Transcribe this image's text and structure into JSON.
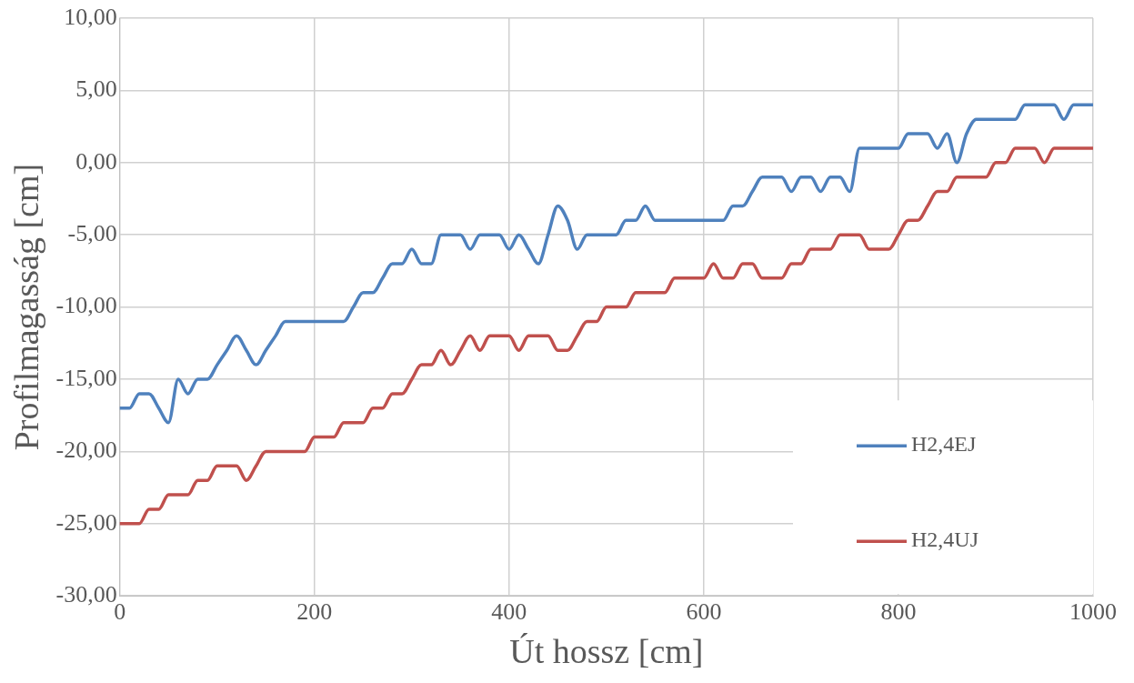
{
  "chart_data": {
    "type": "line",
    "xlabel": "Út hossz [cm]",
    "ylabel": "Profilmagasság [cm]",
    "x": [
      0,
      10,
      20,
      30,
      40,
      50,
      60,
      70,
      80,
      90,
      100,
      110,
      120,
      130,
      140,
      150,
      160,
      170,
      180,
      190,
      200,
      210,
      220,
      230,
      240,
      250,
      260,
      270,
      280,
      290,
      300,
      310,
      320,
      330,
      340,
      350,
      360,
      370,
      380,
      390,
      400,
      410,
      420,
      430,
      440,
      450,
      460,
      470,
      480,
      490,
      500,
      510,
      520,
      530,
      540,
      550,
      560,
      570,
      580,
      590,
      600,
      610,
      620,
      630,
      640,
      650,
      660,
      670,
      680,
      690,
      700,
      710,
      720,
      730,
      740,
      750,
      760,
      770,
      780,
      790,
      800,
      810,
      820,
      830,
      840,
      850,
      860,
      870,
      880,
      890,
      900,
      910,
      920,
      930,
      940,
      950,
      960,
      970,
      980,
      990,
      1000
    ],
    "series": [
      {
        "name": "H2,4EJ",
        "color": "#4f81bd",
        "values": [
          -17,
          -17,
          -16,
          -16,
          -17,
          -18,
          -15,
          -16,
          -15,
          -15,
          -14,
          -13,
          -12,
          -13,
          -14,
          -13,
          -12,
          -11,
          -11,
          -11,
          -11,
          -11,
          -11,
          -11,
          -10,
          -9,
          -9,
          -8,
          -7,
          -7,
          -6,
          -7,
          -7,
          -5,
          -5,
          -5,
          -6,
          -5,
          -5,
          -5,
          -6,
          -5,
          -6,
          -7,
          -5,
          -3,
          -4,
          -6,
          -5,
          -5,
          -5,
          -5,
          -4,
          -4,
          -3,
          -4,
          -4,
          -4,
          -4,
          -4,
          -4,
          -4,
          -4,
          -3,
          -3,
          -2,
          -1,
          -1,
          -1,
          -2,
          -1,
          -1,
          -2,
          -1,
          -1,
          -2,
          1,
          1,
          1,
          1,
          1,
          2,
          2,
          2,
          1,
          2,
          0,
          2,
          3,
          3,
          3,
          3,
          3,
          4,
          4,
          4,
          4,
          3,
          4,
          4,
          4
        ]
      },
      {
        "name": "H2,4UJ",
        "color": "#c0504d",
        "values": [
          -25,
          -25,
          -25,
          -24,
          -24,
          -23,
          -23,
          -23,
          -22,
          -22,
          -21,
          -21,
          -21,
          -22,
          -21,
          -20,
          -20,
          -20,
          -20,
          -20,
          -19,
          -19,
          -19,
          -18,
          -18,
          -18,
          -17,
          -17,
          -16,
          -16,
          -15,
          -14,
          -14,
          -13,
          -14,
          -13,
          -12,
          -13,
          -12,
          -12,
          -12,
          -13,
          -12,
          -12,
          -12,
          -13,
          -13,
          -12,
          -11,
          -11,
          -10,
          -10,
          -10,
          -9,
          -9,
          -9,
          -9,
          -8,
          -8,
          -8,
          -8,
          -7,
          -8,
          -8,
          -7,
          -7,
          -8,
          -8,
          -8,
          -7,
          -7,
          -6,
          -6,
          -6,
          -5,
          -5,
          -5,
          -6,
          -6,
          -6,
          -5,
          -4,
          -4,
          -3,
          -2,
          -2,
          -1,
          -1,
          -1,
          -1,
          0,
          0,
          1,
          1,
          1,
          0,
          1,
          1,
          1,
          1,
          1
        ]
      }
    ],
    "xlim": [
      0,
      1000
    ],
    "xticks": [
      0,
      200,
      400,
      600,
      800,
      1000
    ],
    "ylim": [
      -30,
      10
    ],
    "yticks": [
      {
        "value": -30,
        "label": "-30,00"
      },
      {
        "value": -25,
        "label": "-25,00"
      },
      {
        "value": -20,
        "label": "-20,00"
      },
      {
        "value": -15,
        "label": "-15,00"
      },
      {
        "value": -10,
        "label": "-10,00"
      },
      {
        "value": -5,
        "label": "-5,00"
      },
      {
        "value": 0,
        "label": "0,00"
      },
      {
        "value": 5,
        "label": "5,00"
      },
      {
        "value": 10,
        "label": "10,00"
      }
    ],
    "grid": true,
    "legend": "bottom right",
    "marker": "none",
    "line_style": "solid"
  }
}
